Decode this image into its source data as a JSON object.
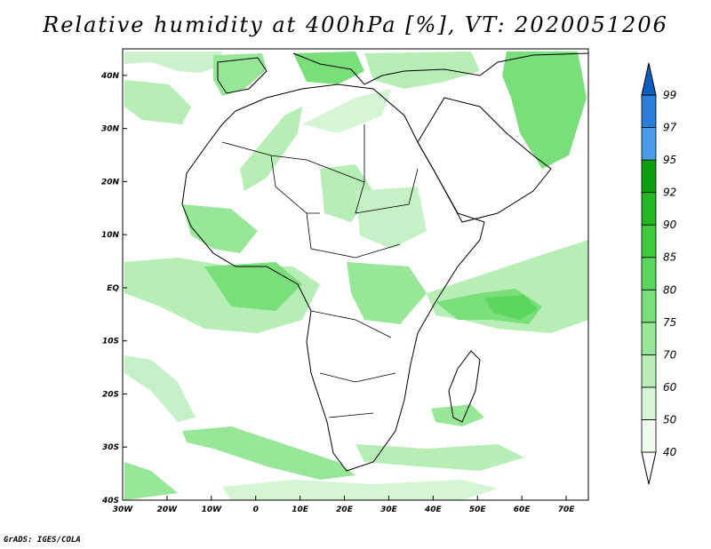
{
  "title": "Relative humidity at 400hPa [%], VT: 2020051206",
  "footer": "GrADS: IGES/COLA",
  "map": {
    "projection": "latlon",
    "lon_range": [
      -30,
      75
    ],
    "lat_range": [
      -40,
      45
    ],
    "lat_ticks": [
      {
        "value": 40,
        "label": "40N"
      },
      {
        "value": 30,
        "label": "30N"
      },
      {
        "value": 20,
        "label": "20N"
      },
      {
        "value": 10,
        "label": "10N"
      },
      {
        "value": 0,
        "label": "EQ"
      },
      {
        "value": -10,
        "label": "10S"
      },
      {
        "value": -20,
        "label": "20S"
      },
      {
        "value": -30,
        "label": "30S"
      },
      {
        "value": -40,
        "label": "40S"
      }
    ],
    "lon_ticks": [
      {
        "value": -30,
        "label": "30W"
      },
      {
        "value": -20,
        "label": "20W"
      },
      {
        "value": -10,
        "label": "10W"
      },
      {
        "value": 0,
        "label": "0"
      },
      {
        "value": 10,
        "label": "10E"
      },
      {
        "value": 20,
        "label": "20E"
      },
      {
        "value": 30,
        "label": "30E"
      },
      {
        "value": 40,
        "label": "40E"
      },
      {
        "value": 50,
        "label": "50E"
      },
      {
        "value": 60,
        "label": "60E"
      },
      {
        "value": 70,
        "label": "70E"
      }
    ]
  },
  "colorbar": {
    "levels": [
      "40",
      "50",
      "60",
      "70",
      "75",
      "80",
      "85",
      "90",
      "92",
      "95",
      "97",
      "99"
    ],
    "colors": [
      "#f0fcf0",
      "#d4f6d4",
      "#b6eeb6",
      "#98e698",
      "#7ade7a",
      "#5cd65c",
      "#3ecb3e",
      "#22b722",
      "#0e9e0e",
      "#4a9ee8",
      "#2a7ed8",
      "#0b5ec0"
    ]
  }
}
